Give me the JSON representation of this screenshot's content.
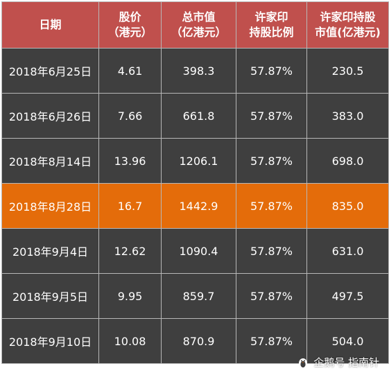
{
  "table": {
    "headers": [
      [
        "日期"
      ],
      [
        "股价",
        "（港元）"
      ],
      [
        "总市值",
        "（亿港元）"
      ],
      [
        "许家印",
        "持股比例"
      ],
      [
        "许家印持股",
        "市值(亿港元)"
      ]
    ],
    "rows": [
      [
        "2018年6月25日",
        "4.61",
        "398.3",
        "57.87%",
        "230.5"
      ],
      [
        "2018年6月26日",
        "7.66",
        "661.8",
        "57.87%",
        "383.0"
      ],
      [
        "2018年8月14日",
        "13.96",
        "1206.1",
        "57.87%",
        "698.0"
      ],
      [
        "2018年8月28日",
        "16.7",
        "1442.9",
        "57.87%",
        "835.0"
      ],
      [
        "2018年9月4日",
        "12.62",
        "1090.4",
        "57.87%",
        "631.0"
      ],
      [
        "2018年9月5日",
        "9.95",
        "859.7",
        "57.87%",
        "497.5"
      ],
      [
        "2018年9月10日",
        "10.08",
        "870.9",
        "57.87%",
        "504.0"
      ]
    ],
    "highlighted_row": 3
  },
  "colors": {
    "header_bg": "#c0504d",
    "row_bg": "#3f3f3f",
    "highlight_bg": "#e46c0a"
  },
  "watermark": {
    "icon": "penguin-icon",
    "text": "企鹅号 指南针"
  }
}
